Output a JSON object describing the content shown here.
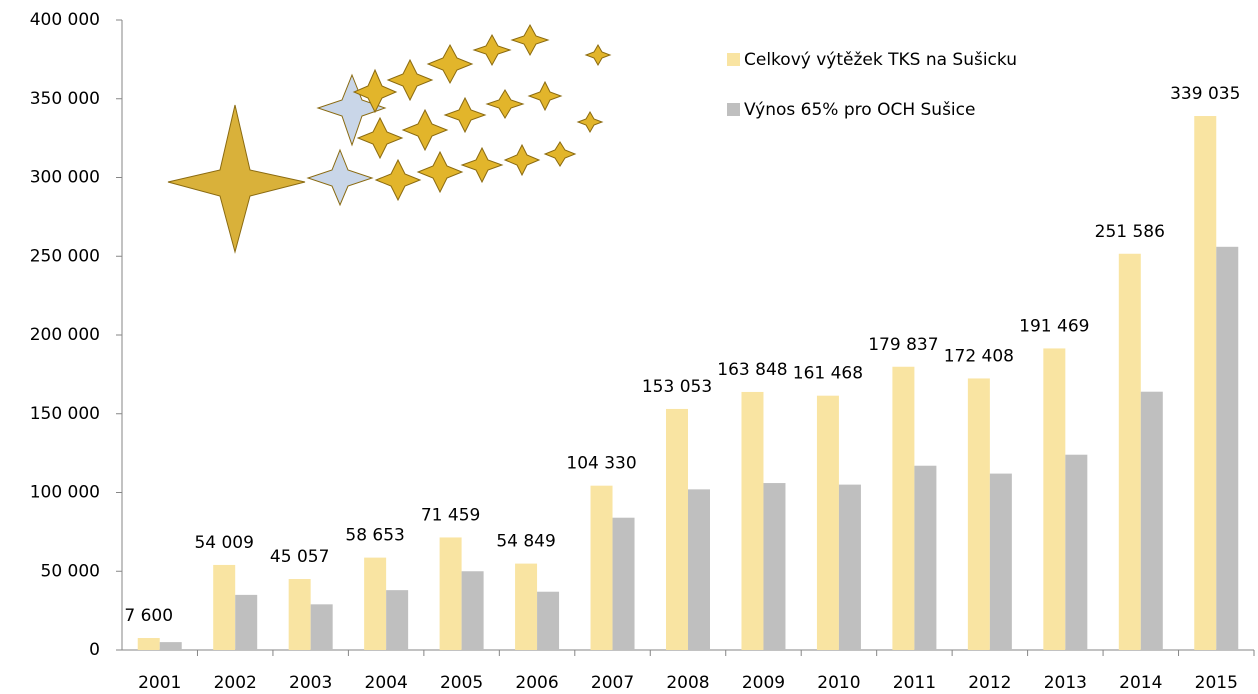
{
  "chart_data": {
    "type": "bar",
    "categories": [
      "2001",
      "2002",
      "2003",
      "2004",
      "2005",
      "2006",
      "2007",
      "2008",
      "2009",
      "2010",
      "2011",
      "2012",
      "2013",
      "2014",
      "2015"
    ],
    "series": [
      {
        "name": "Celkový výtěžek TKS na Sušicku",
        "color": "#f9e4a2",
        "values": [
          7600,
          54009,
          45057,
          58653,
          71459,
          54849,
          104330,
          153053,
          163848,
          161468,
          179837,
          172408,
          191469,
          251586,
          339035
        ],
        "value_labels": [
          "7 600",
          "54 009",
          "45 057",
          "58 653",
          "71 459",
          "54 849",
          "104 330",
          "153 053",
          "163 848",
          "161 468",
          "179 837",
          "172 408",
          "191 469",
          "251 586",
          "339 035"
        ]
      },
      {
        "name": "Výnos 65% pro OCH Sušice",
        "color": "#bfbfbf",
        "values": [
          5000,
          35000,
          29000,
          38000,
          50000,
          37000,
          84000,
          102000,
          106000,
          105000,
          117000,
          112000,
          124000,
          164000,
          256000
        ]
      }
    ],
    "ylim": [
      0,
      400000
    ],
    "yticks": [
      0,
      {
        "value": 50000,
        "label": "50 000"
      },
      {
        "value": 100000,
        "label": "100 000"
      },
      {
        "value": 150000,
        "label": "150 000"
      },
      {
        "value": 200000,
        "label": "200 000"
      },
      {
        "value": 250000,
        "label": "250 000"
      },
      {
        "value": 300000,
        "label": "300 000"
      },
      {
        "value": 350000,
        "label": "350 000"
      },
      {
        "value": 400000,
        "label": "400 000"
      }
    ],
    "legend": "top-right"
  }
}
